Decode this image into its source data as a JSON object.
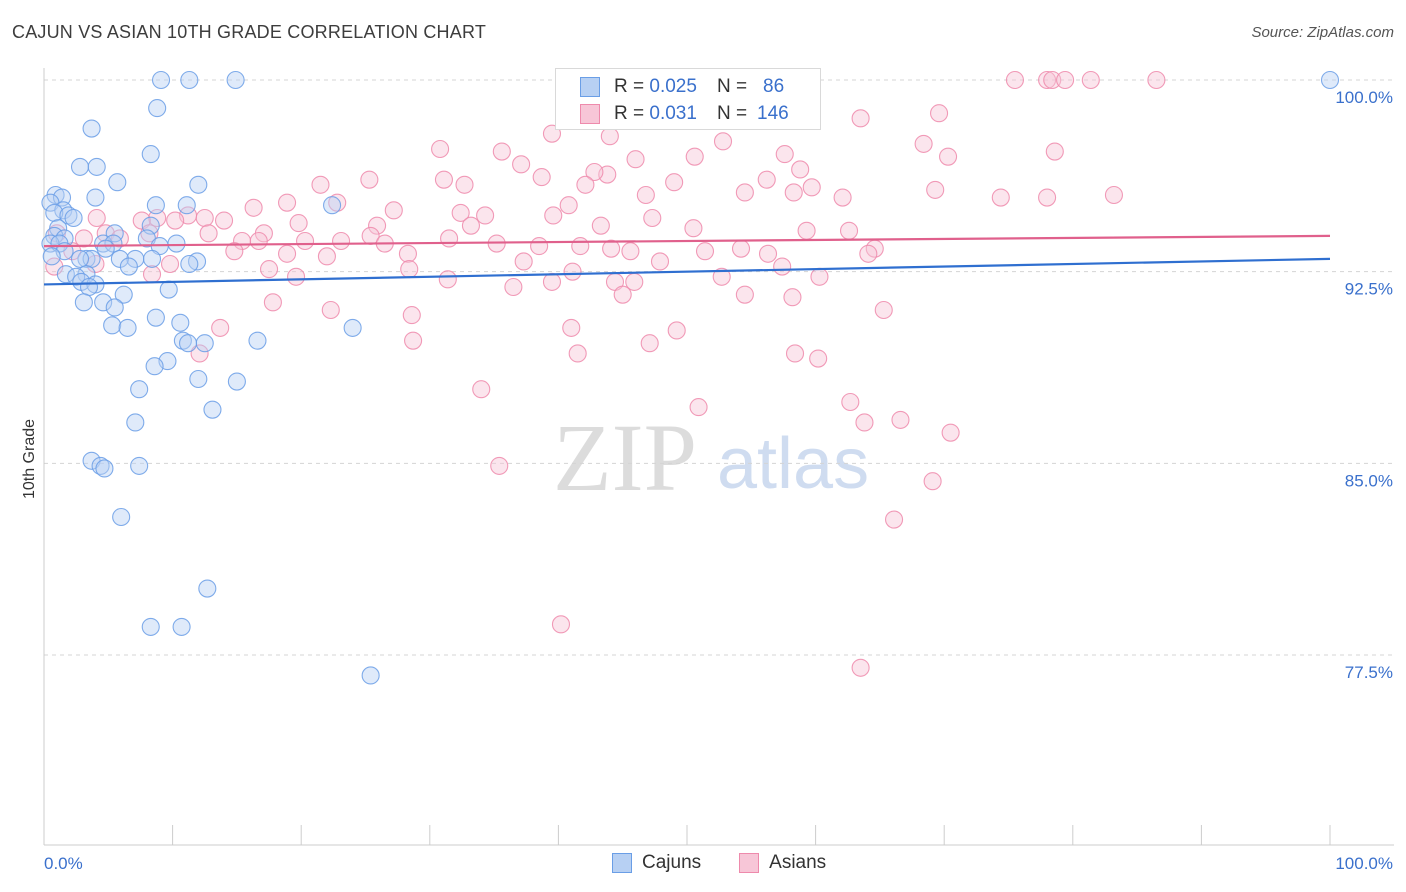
{
  "header": {
    "title": "CAJUN VS ASIAN 10TH GRADE CORRELATION CHART",
    "source": "Source: ZipAtlas.com"
  },
  "watermark": {
    "zip": "ZIP",
    "atlas": "atlas"
  },
  "legend": {
    "rows": [
      {
        "r_label": "R =",
        "r_value": "0.025",
        "n_label": "N =",
        "n_value": "86"
      },
      {
        "r_label": "R =",
        "r_value": "0.031",
        "n_label": "N =",
        "n_value": "146"
      }
    ],
    "bottom": [
      "Cajuns",
      "Asians"
    ]
  },
  "chart_data": {
    "type": "scatter",
    "title": "CAJUN VS ASIAN 10TH GRADE CORRELATION CHART",
    "xlabel": "",
    "ylabel": "10th Grade",
    "xlim": [
      0,
      100
    ],
    "ylim": [
      70.6,
      101.7
    ],
    "x_tick_labels": [
      "0.0%",
      "100.0%"
    ],
    "y_ticks": [
      77.5,
      85.0,
      92.5,
      100.0
    ],
    "y_tick_labels": [
      "77.5%",
      "85.0%",
      "92.5%",
      "100.0%"
    ],
    "grid": "horizontal dashed",
    "legend_position": "top-center",
    "series": [
      {
        "name": "Cajuns",
        "color": "#6a9ee6",
        "fill": "#b7d0f3",
        "line_color": "#2f6fd0",
        "trend": {
          "x": [
            0,
            100
          ],
          "y": [
            92.0,
            93.0
          ]
        },
        "points": [
          [
            9.1,
            100
          ],
          [
            11.3,
            100
          ],
          [
            14.9,
            100
          ],
          [
            100,
            100
          ],
          [
            8.8,
            98.9
          ],
          [
            3.7,
            98.1
          ],
          [
            8.3,
            97.1
          ],
          [
            2.8,
            96.6
          ],
          [
            4.1,
            96.6
          ],
          [
            5.7,
            96.0
          ],
          [
            12.0,
            95.9
          ],
          [
            0.9,
            95.5
          ],
          [
            1.4,
            95.4
          ],
          [
            4.0,
            95.4
          ],
          [
            0.5,
            95.2
          ],
          [
            8.7,
            95.1
          ],
          [
            11.1,
            95.1
          ],
          [
            22.4,
            95.1
          ],
          [
            1.5,
            94.9
          ],
          [
            0.8,
            94.8
          ],
          [
            1.9,
            94.7
          ],
          [
            2.3,
            94.6
          ],
          [
            8.3,
            94.3
          ],
          [
            1.1,
            94.2
          ],
          [
            5.5,
            94.0
          ],
          [
            0.8,
            93.9
          ],
          [
            1.6,
            93.8
          ],
          [
            8.0,
            93.8
          ],
          [
            0.5,
            93.6
          ],
          [
            1.2,
            93.6
          ],
          [
            4.6,
            93.6
          ],
          [
            5.4,
            93.6
          ],
          [
            10.3,
            93.6
          ],
          [
            9.0,
            93.5
          ],
          [
            4.8,
            93.4
          ],
          [
            1.6,
            93.3
          ],
          [
            0.6,
            93.1
          ],
          [
            3.3,
            93.0
          ],
          [
            3.7,
            93.0
          ],
          [
            7.1,
            93.0
          ],
          [
            8.4,
            93.0
          ],
          [
            5.9,
            93.0
          ],
          [
            2.8,
            93.0
          ],
          [
            11.9,
            92.9
          ],
          [
            11.3,
            92.8
          ],
          [
            6.6,
            92.7
          ],
          [
            1.7,
            92.4
          ],
          [
            3.3,
            92.4
          ],
          [
            2.5,
            92.3
          ],
          [
            2.9,
            92.1
          ],
          [
            4.0,
            92.0
          ],
          [
            3.5,
            91.9
          ],
          [
            9.7,
            91.8
          ],
          [
            6.2,
            91.6
          ],
          [
            3.1,
            91.3
          ],
          [
            4.6,
            91.3
          ],
          [
            5.5,
            91.1
          ],
          [
            8.7,
            90.7
          ],
          [
            10.6,
            90.5
          ],
          [
            5.3,
            90.4
          ],
          [
            6.5,
            90.3
          ],
          [
            24.0,
            90.3
          ],
          [
            16.6,
            89.8
          ],
          [
            10.8,
            89.8
          ],
          [
            12.5,
            89.7
          ],
          [
            11.2,
            89.7
          ],
          [
            9.6,
            89.0
          ],
          [
            8.6,
            88.8
          ],
          [
            12.0,
            88.3
          ],
          [
            15.0,
            88.2
          ],
          [
            7.4,
            87.9
          ],
          [
            13.1,
            87.1
          ],
          [
            7.1,
            86.6
          ],
          [
            3.7,
            85.1
          ],
          [
            4.4,
            84.9
          ],
          [
            7.4,
            84.9
          ],
          [
            4.7,
            84.8
          ],
          [
            6.0,
            82.9
          ],
          [
            12.7,
            80.1
          ],
          [
            8.3,
            78.6
          ],
          [
            10.7,
            78.6
          ],
          [
            25.4,
            76.7
          ]
        ]
      },
      {
        "name": "Asians",
        "color": "#ee8aac",
        "fill": "#f7c6d7",
        "line_color": "#e0608c",
        "trend": {
          "x": [
            0,
            100
          ],
          "y": [
            93.5,
            93.9
          ]
        },
        "points": [
          [
            75.5,
            100
          ],
          [
            78.0,
            100
          ],
          [
            78.4,
            100
          ],
          [
            79.4,
            100
          ],
          [
            81.4,
            100
          ],
          [
            86.5,
            100
          ],
          [
            69.6,
            98.7
          ],
          [
            63.5,
            98.5
          ],
          [
            39.5,
            97.9
          ],
          [
            44.0,
            97.8
          ],
          [
            52.8,
            97.6
          ],
          [
            43.8,
            96.3
          ],
          [
            68.4,
            97.5
          ],
          [
            30.8,
            97.3
          ],
          [
            35.6,
            97.2
          ],
          [
            57.6,
            97.1
          ],
          [
            70.3,
            97.0
          ],
          [
            78.6,
            97.2
          ],
          [
            46.0,
            96.9
          ],
          [
            50.6,
            97.0
          ],
          [
            37.1,
            96.7
          ],
          [
            58.8,
            96.5
          ],
          [
            42.8,
            96.4
          ],
          [
            38.7,
            96.2
          ],
          [
            31.1,
            96.1
          ],
          [
            56.2,
            96.1
          ],
          [
            25.3,
            96.1
          ],
          [
            49.0,
            96.0
          ],
          [
            42.1,
            95.9
          ],
          [
            32.7,
            95.9
          ],
          [
            21.5,
            95.9
          ],
          [
            59.7,
            95.8
          ],
          [
            54.5,
            95.6
          ],
          [
            58.3,
            95.6
          ],
          [
            69.3,
            95.7
          ],
          [
            46.8,
            95.5
          ],
          [
            62.1,
            95.4
          ],
          [
            74.4,
            95.4
          ],
          [
            78.0,
            95.4
          ],
          [
            83.2,
            95.5
          ],
          [
            18.9,
            95.2
          ],
          [
            22.8,
            95.2
          ],
          [
            40.8,
            95.1
          ],
          [
            16.3,
            95.0
          ],
          [
            27.2,
            94.9
          ],
          [
            32.4,
            94.8
          ],
          [
            34.3,
            94.7
          ],
          [
            39.6,
            94.7
          ],
          [
            47.3,
            94.6
          ],
          [
            11.2,
            94.7
          ],
          [
            4.1,
            94.6
          ],
          [
            8.8,
            94.6
          ],
          [
            12.5,
            94.6
          ],
          [
            7.6,
            94.5
          ],
          [
            10.2,
            94.5
          ],
          [
            14.0,
            94.5
          ],
          [
            19.8,
            94.4
          ],
          [
            25.9,
            94.3
          ],
          [
            33.2,
            94.3
          ],
          [
            43.3,
            94.3
          ],
          [
            50.5,
            94.2
          ],
          [
            59.3,
            94.1
          ],
          [
            62.6,
            94.1
          ],
          [
            1.0,
            94.0
          ],
          [
            4.8,
            94.0
          ],
          [
            8.2,
            94.0
          ],
          [
            12.8,
            94.0
          ],
          [
            17.1,
            94.0
          ],
          [
            25.4,
            93.9
          ],
          [
            31.5,
            93.8
          ],
          [
            3.1,
            93.8
          ],
          [
            5.9,
            93.8
          ],
          [
            15.4,
            93.7
          ],
          [
            16.7,
            93.7
          ],
          [
            20.3,
            93.7
          ],
          [
            23.1,
            93.7
          ],
          [
            26.5,
            93.6
          ],
          [
            35.2,
            93.6
          ],
          [
            38.5,
            93.5
          ],
          [
            41.7,
            93.5
          ],
          [
            44.1,
            93.4
          ],
          [
            54.2,
            93.4
          ],
          [
            64.6,
            93.4
          ],
          [
            2.2,
            93.3
          ],
          [
            14.8,
            93.3
          ],
          [
            18.9,
            93.2
          ],
          [
            28.3,
            93.2
          ],
          [
            45.6,
            93.3
          ],
          [
            51.4,
            93.3
          ],
          [
            56.3,
            93.2
          ],
          [
            64.1,
            93.2
          ],
          [
            22.0,
            93.1
          ],
          [
            37.3,
            92.9
          ],
          [
            47.9,
            92.9
          ],
          [
            57.4,
            92.7
          ],
          [
            0.8,
            92.7
          ],
          [
            4.0,
            92.8
          ],
          [
            9.8,
            92.8
          ],
          [
            17.5,
            92.6
          ],
          [
            28.4,
            92.6
          ],
          [
            41.1,
            92.5
          ],
          [
            52.7,
            92.3
          ],
          [
            60.3,
            92.3
          ],
          [
            8.4,
            92.4
          ],
          [
            19.6,
            92.3
          ],
          [
            31.4,
            92.2
          ],
          [
            44.4,
            92.1
          ],
          [
            39.5,
            92.1
          ],
          [
            45.9,
            92.1
          ],
          [
            36.5,
            91.9
          ],
          [
            45.0,
            91.6
          ],
          [
            54.5,
            91.6
          ],
          [
            58.2,
            91.5
          ],
          [
            17.8,
            91.3
          ],
          [
            22.3,
            91.0
          ],
          [
            28.6,
            90.8
          ],
          [
            65.3,
            91.0
          ],
          [
            13.7,
            90.3
          ],
          [
            41.0,
            90.3
          ],
          [
            49.2,
            90.2
          ],
          [
            28.7,
            89.8
          ],
          [
            47.1,
            89.7
          ],
          [
            41.5,
            89.3
          ],
          [
            58.4,
            89.3
          ],
          [
            12.1,
            89.3
          ],
          [
            60.2,
            89.1
          ],
          [
            34.0,
            87.9
          ],
          [
            50.9,
            87.2
          ],
          [
            62.7,
            87.4
          ],
          [
            63.8,
            86.6
          ],
          [
            66.6,
            86.7
          ],
          [
            70.5,
            86.2
          ],
          [
            35.4,
            84.9
          ],
          [
            69.1,
            84.3
          ],
          [
            66.1,
            82.8
          ],
          [
            40.2,
            78.7
          ],
          [
            63.5,
            77.0
          ]
        ]
      }
    ]
  }
}
